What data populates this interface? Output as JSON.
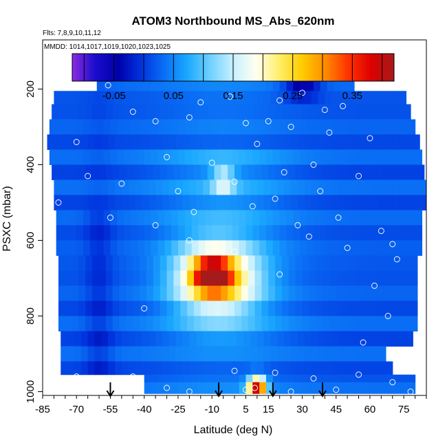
{
  "chart_data": {
    "type": "heatmap",
    "title": "ATOM3 Northbound MS_Abs_620nm",
    "flights_label": "Flts: 7,8,9,10,11,12",
    "dates_label": "MMDD: 1014,1017,1019,1020,1023,1025",
    "xlabel": "Latitude (deg N)",
    "ylabel": "PSXC (mbar)",
    "xlim": [
      -85,
      85
    ],
    "ylim": [
      1010,
      70
    ],
    "x_ticks": [
      -85,
      -70,
      -55,
      -40,
      -25,
      -10,
      5,
      15,
      30,
      45,
      60,
      75
    ],
    "y_ticks": [
      200,
      400,
      600,
      800,
      1000
    ],
    "y_reversed": true,
    "colorbar": {
      "range": [
        -0.12,
        0.42
      ],
      "tick_values": [
        -0.05,
        0.05,
        0.15,
        0.25,
        0.35
      ],
      "tick_labels": [
        "-0.05",
        "0.05",
        "0.15",
        "0.25",
        "0.35"
      ],
      "colors": [
        "#8a2be2",
        "#1a0ccc",
        "#0000aa",
        "#0033dd",
        "#0a6ef5",
        "#1aa8ff",
        "#6fd0ff",
        "#c8f0ff",
        "#fffff0",
        "#ffef6a",
        "#ffcc00",
        "#ff8c00",
        "#ff3300",
        "#dd0000",
        "#a51a1a"
      ]
    },
    "bands": [
      {
        "p_top": 170,
        "p_bot": 205,
        "lat_min": -61,
        "lat_max": 52
      },
      {
        "p_top": 205,
        "p_bot": 240,
        "lat_min": -80,
        "lat_max": 76
      },
      {
        "p_top": 240,
        "p_bot": 280,
        "lat_min": -81,
        "lat_max": 78
      },
      {
        "p_top": 280,
        "p_bot": 320,
        "lat_min": -82,
        "lat_max": 80
      },
      {
        "p_top": 320,
        "p_bot": 360,
        "lat_min": -83,
        "lat_max": 81
      },
      {
        "p_top": 360,
        "p_bot": 400,
        "lat_min": -82,
        "lat_max": 82
      },
      {
        "p_top": 400,
        "p_bot": 440,
        "lat_min": -81,
        "lat_max": 82
      },
      {
        "p_top": 440,
        "p_bot": 480,
        "lat_min": -80,
        "lat_max": 83
      },
      {
        "p_top": 480,
        "p_bot": 520,
        "lat_min": -80,
        "lat_max": 83
      },
      {
        "p_top": 520,
        "p_bot": 560,
        "lat_min": -79,
        "lat_max": 82
      },
      {
        "p_top": 560,
        "p_bot": 600,
        "lat_min": -79,
        "lat_max": 82
      },
      {
        "p_top": 600,
        "p_bot": 640,
        "lat_min": -79,
        "lat_max": 81
      },
      {
        "p_top": 640,
        "p_bot": 680,
        "lat_min": -78,
        "lat_max": 81
      },
      {
        "p_top": 680,
        "p_bot": 720,
        "lat_min": -78,
        "lat_max": 80
      },
      {
        "p_top": 720,
        "p_bot": 760,
        "lat_min": -78,
        "lat_max": 80
      },
      {
        "p_top": 760,
        "p_bot": 800,
        "lat_min": -78,
        "lat_max": 80
      },
      {
        "p_top": 800,
        "p_bot": 840,
        "lat_min": -78,
        "lat_max": 80
      },
      {
        "p_top": 840,
        "p_bot": 880,
        "lat_min": -77,
        "lat_max": 79
      },
      {
        "p_top": 880,
        "p_bot": 920,
        "lat_min": -77,
        "lat_max": 66
      },
      {
        "p_top": 920,
        "p_bot": 955,
        "lat_min": -77,
        "lat_max": 68
      },
      {
        "p_top": 955,
        "p_bot": 975,
        "lat_min": -40,
        "lat_max": 80
      },
      {
        "p_top": 975,
        "p_bot": 1005,
        "lat_min": -40,
        "lat_max": 80
      }
    ],
    "hotspots": [
      {
        "lat": -8,
        "p": 700,
        "value": 0.28,
        "rlat": 18,
        "rp": 90
      },
      {
        "lat": -10,
        "p": 690,
        "value": 0.3,
        "rlat": 8,
        "rp": 40
      },
      {
        "lat": -5,
        "p": 440,
        "value": 0.18,
        "rlat": 5,
        "rp": 30
      },
      {
        "lat": 10,
        "p": 990,
        "value": 0.4,
        "rlat": 4,
        "rp": 30
      },
      {
        "lat": 30,
        "p": 200,
        "value": -0.08,
        "rlat": 8,
        "rp": 20
      }
    ],
    "arrows_lat": [
      -55,
      -7,
      17,
      39
    ],
    "sample_points": [
      [
        -56,
        190
      ],
      [
        -15,
        235
      ],
      [
        -2,
        220
      ],
      [
        20,
        230
      ],
      [
        30,
        210
      ],
      [
        40,
        255
      ],
      [
        48,
        245
      ],
      [
        -45,
        260
      ],
      [
        -35,
        285
      ],
      [
        -20,
        275
      ],
      [
        5,
        290
      ],
      [
        15,
        285
      ],
      [
        25,
        300
      ],
      [
        42,
        315
      ],
      [
        -70,
        340
      ],
      [
        -30,
        380
      ],
      [
        -10,
        395
      ],
      [
        10,
        345
      ],
      [
        22,
        420
      ],
      [
        35,
        400
      ],
      [
        60,
        330
      ],
      [
        -65,
        430
      ],
      [
        -50,
        450
      ],
      [
        -25,
        470
      ],
      [
        0,
        445
      ],
      [
        18,
        490
      ],
      [
        38,
        470
      ],
      [
        55,
        430
      ],
      [
        -78,
        500
      ],
      [
        -55,
        540
      ],
      [
        -35,
        560
      ],
      [
        -18,
        525
      ],
      [
        8,
        510
      ],
      [
        28,
        560
      ],
      [
        46,
        540
      ],
      [
        65,
        575
      ],
      [
        70,
        610
      ],
      [
        -20,
        600
      ],
      [
        0,
        630
      ],
      [
        33,
        590
      ],
      [
        50,
        620
      ],
      [
        72,
        650
      ],
      [
        62,
        720
      ],
      [
        68,
        800
      ],
      [
        57,
        870
      ],
      [
        -40,
        780
      ],
      [
        20,
        690
      ],
      [
        74,
        920
      ],
      [
        -70,
        960
      ],
      [
        -45,
        960
      ],
      [
        0,
        945
      ],
      [
        18,
        950
      ],
      [
        35,
        965
      ],
      [
        55,
        955
      ],
      [
        70,
        975
      ],
      [
        -30,
        990
      ],
      [
        -20,
        1000
      ],
      [
        5,
        995
      ],
      [
        9,
        990
      ],
      [
        25,
        1000
      ],
      [
        45,
        995
      ],
      [
        78,
        1000
      ]
    ]
  }
}
